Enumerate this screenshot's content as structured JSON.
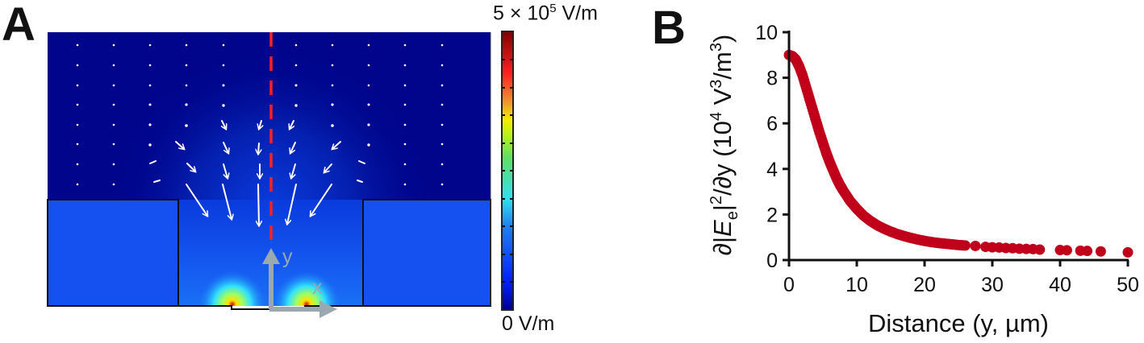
{
  "panels": {
    "a": {
      "letter": "A"
    },
    "b": {
      "letter": "B"
    }
  },
  "colorbar": {
    "max_label_prefix": "5 × 10",
    "max_label_exp": "5",
    "max_label_unit": " V/m",
    "min_label": "0  V/m"
  },
  "simulation": {
    "axis_labels": {
      "x": "x",
      "y": "y"
    },
    "colors": {
      "background_field": "#00058c",
      "channel_fill": "#1550f0",
      "cutline": "#ff2020",
      "axis_arrows": "#9aa8b0"
    }
  },
  "chart_data": {
    "type": "scatter",
    "title": "",
    "xlabel": "Distance (y, µm)",
    "ylabel": "∂|Ee|²/∂y (10⁴ V³/m³)",
    "xlim": [
      0,
      50
    ],
    "ylim": [
      0,
      10
    ],
    "xticks": [
      0,
      10,
      20,
      30,
      40,
      50
    ],
    "yticks": [
      0,
      2,
      4,
      6,
      8,
      10
    ],
    "grid": false,
    "legend": null,
    "marker_color": "#c0001a",
    "series": [
      {
        "name": "∂|Ee|²/∂y",
        "x": [
          0,
          0.5,
          1,
          1.5,
          2,
          2.5,
          3,
          3.5,
          4,
          4.5,
          5,
          5.5,
          6,
          6.5,
          7,
          7.5,
          8,
          9,
          10,
          11,
          12,
          13,
          14,
          15,
          16,
          17,
          18,
          19,
          20,
          21,
          22,
          23,
          24,
          25,
          26,
          27.5,
          29,
          30,
          31,
          32,
          33,
          34,
          35,
          36,
          37,
          40,
          41,
          43,
          44,
          46,
          50
        ],
        "y": [
          9.0,
          8.95,
          8.8,
          8.5,
          8.1,
          7.6,
          7.1,
          6.6,
          6.1,
          5.6,
          5.15,
          4.7,
          4.3,
          3.95,
          3.6,
          3.3,
          3.05,
          2.6,
          2.25,
          1.95,
          1.72,
          1.53,
          1.38,
          1.25,
          1.14,
          1.05,
          0.97,
          0.9,
          0.84,
          0.79,
          0.75,
          0.72,
          0.69,
          0.66,
          0.64,
          0.62,
          0.58,
          0.56,
          0.55,
          0.53,
          0.52,
          0.5,
          0.49,
          0.48,
          0.46,
          0.44,
          0.43,
          0.41,
          0.4,
          0.38,
          0.34
        ]
      }
    ]
  }
}
